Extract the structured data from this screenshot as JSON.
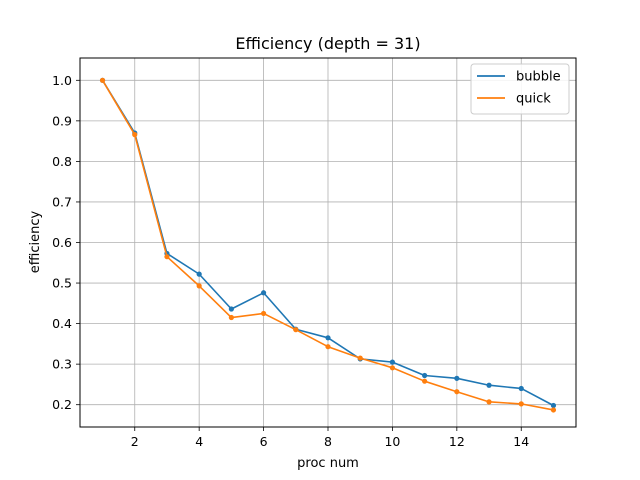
{
  "chart_data": {
    "type": "line",
    "title": "Efficiency (depth = 31)",
    "xlabel": "proc num",
    "ylabel": "efficiency",
    "xlim": [
      0.3,
      15.7
    ],
    "ylim": [
      0.145,
      1.055
    ],
    "xticks": [
      2,
      4,
      6,
      8,
      10,
      12,
      14
    ],
    "yticks": [
      0.2,
      0.3,
      0.4,
      0.5,
      0.6,
      0.7,
      0.8,
      0.9,
      1.0
    ],
    "grid": true,
    "legend": "top-right",
    "x": [
      1,
      2,
      3,
      4,
      5,
      6,
      7,
      8,
      9,
      10,
      11,
      12,
      13,
      14,
      15
    ],
    "series": [
      {
        "name": "bubble",
        "color": "#1f77b4",
        "values": [
          1.0,
          0.87,
          0.573,
          0.522,
          0.436,
          0.476,
          0.386,
          0.365,
          0.313,
          0.305,
          0.272,
          0.265,
          0.248,
          0.24,
          0.198
        ]
      },
      {
        "name": "quick",
        "color": "#ff7f0e",
        "values": [
          1.0,
          0.866,
          0.565,
          0.493,
          0.415,
          0.425,
          0.385,
          0.343,
          0.315,
          0.291,
          0.258,
          0.232,
          0.207,
          0.202,
          0.187
        ]
      }
    ]
  }
}
